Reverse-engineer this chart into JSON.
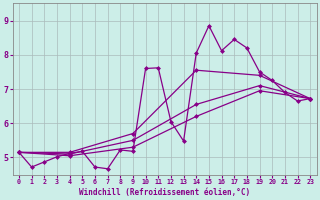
{
  "background_color": "#cceee8",
  "grid_color": "#aabbbb",
  "line_color": "#880088",
  "markersize": 2.5,
  "linewidth": 0.9,
  "xlim": [
    -0.5,
    23.5
  ],
  "ylim": [
    4.5,
    9.5
  ],
  "yticks": [
    5,
    6,
    7,
    8,
    9
  ],
  "xticks": [
    0,
    1,
    2,
    3,
    4,
    5,
    6,
    7,
    8,
    9,
    10,
    11,
    12,
    13,
    14,
    15,
    16,
    17,
    18,
    19,
    20,
    21,
    22,
    23
  ],
  "xlabel": "Windchill (Refroidissement éolien,°C)",
  "series": [
    {
      "x": [
        0,
        1,
        2,
        3,
        4,
        5,
        6,
        7,
        8,
        9,
        10,
        11,
        12,
        13,
        14,
        15,
        16,
        17,
        18,
        19,
        20,
        21,
        22,
        23
      ],
      "y": [
        5.15,
        4.72,
        4.87,
        5.02,
        5.12,
        5.18,
        4.72,
        4.67,
        5.22,
        5.18,
        7.6,
        7.62,
        6.05,
        5.48,
        8.05,
        8.85,
        8.12,
        8.45,
        8.2,
        7.5,
        7.25,
        6.9,
        6.65,
        6.72
      ]
    },
    {
      "x": [
        0,
        4,
        9,
        14,
        19,
        23
      ],
      "y": [
        5.15,
        5.05,
        5.3,
        6.2,
        6.95,
        6.72
      ]
    },
    {
      "x": [
        0,
        4,
        9,
        14,
        19,
        23
      ],
      "y": [
        5.15,
        5.1,
        5.5,
        6.55,
        7.1,
        6.72
      ]
    },
    {
      "x": [
        0,
        4,
        9,
        14,
        19,
        23
      ],
      "y": [
        5.15,
        5.15,
        5.7,
        7.55,
        7.4,
        6.72
      ]
    }
  ]
}
